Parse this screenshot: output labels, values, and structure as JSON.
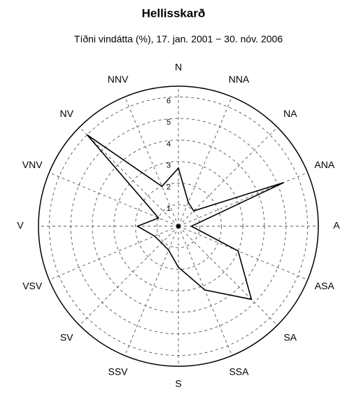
{
  "chart_data": {
    "type": "radar",
    "title": "Hellisskarð",
    "subtitle": "Tíðni vindátta (%), 17. jan. 2001 − 30. nóv. 2006",
    "categories": [
      "N",
      "NNA",
      "NA",
      "ANA",
      "A",
      "ASA",
      "SA",
      "SSA",
      "S",
      "SSV",
      "SV",
      "VSV",
      "V",
      "VNV",
      "NV",
      "NNV"
    ],
    "values": [
      2.7,
      1.2,
      1.0,
      5.3,
      0.6,
      3.0,
      4.8,
      3.2,
      1.9,
      1.2,
      1.1,
      1.2,
      1.9,
      1.0,
      6.0,
      2.0
    ],
    "color": "#000000",
    "rlim": [
      0,
      6.5
    ],
    "rticks": [
      1,
      2,
      3,
      4,
      5,
      6
    ],
    "grid": true
  }
}
